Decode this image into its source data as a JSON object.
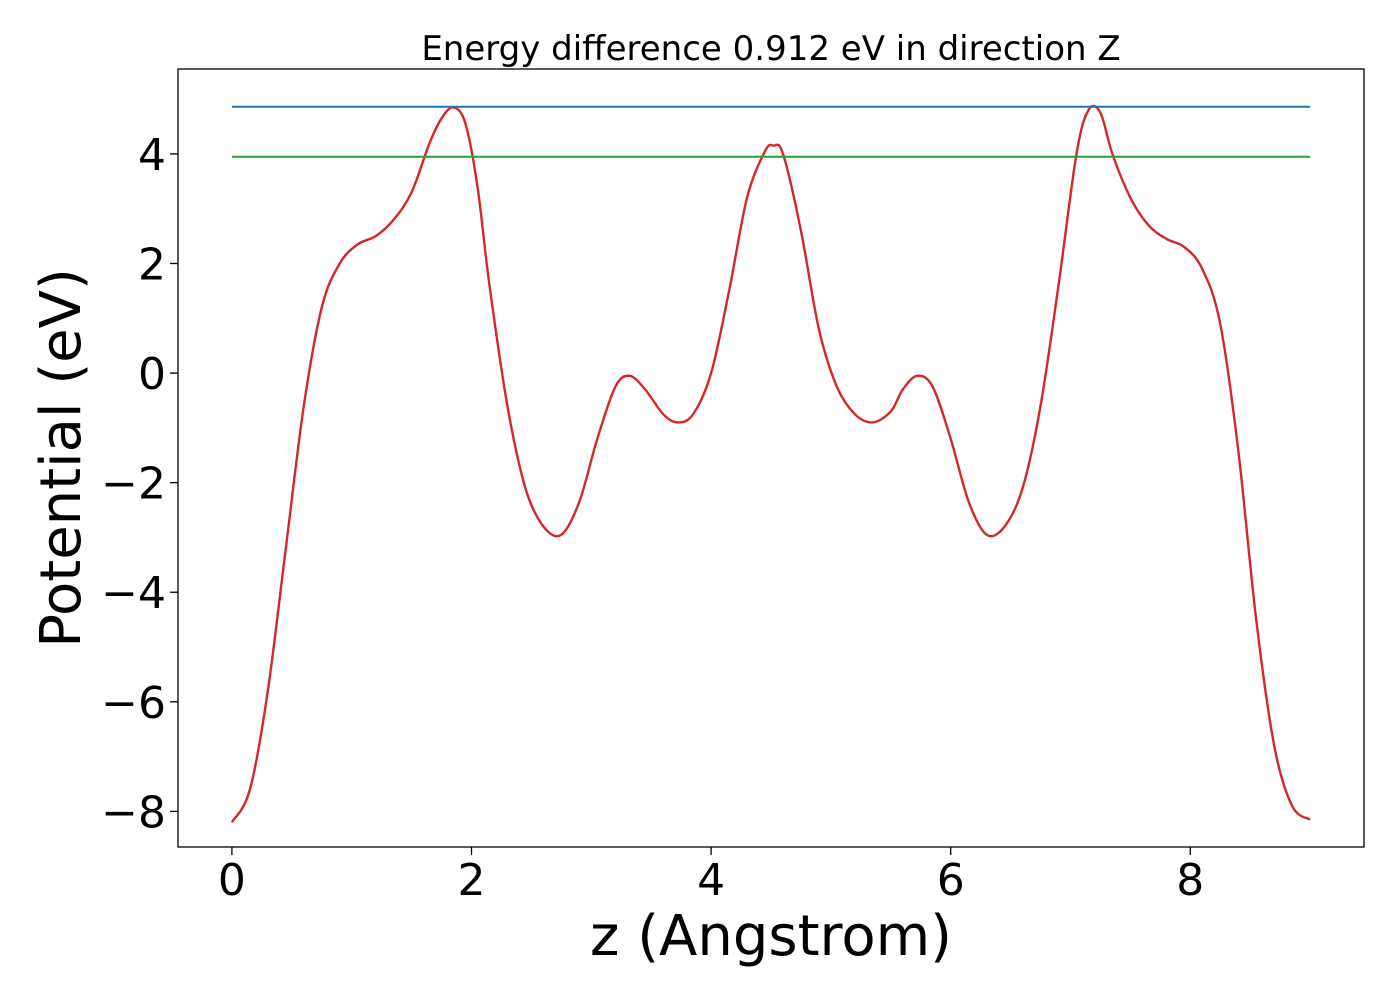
{
  "chart_data": {
    "type": "line",
    "title": "Energy difference 0.912 eV in direction Z",
    "xlabel": "z (Angstrom)",
    "ylabel": "Potential (eV)",
    "xlim": [
      -0.45,
      9.45
    ],
    "ylim": [
      -8.65,
      5.55
    ],
    "x_ticks": [
      0,
      2,
      4,
      6,
      8
    ],
    "x_tick_labels": [
      "0",
      "2",
      "4",
      "6",
      "8"
    ],
    "y_ticks": [
      -8,
      -6,
      -4,
      -2,
      0,
      2,
      4
    ],
    "y_tick_labels": [
      "−8",
      "−6",
      "−4",
      "−2",
      "0",
      "2",
      "4"
    ],
    "grid": false,
    "legend": "none",
    "series": [
      {
        "color": "#d62728",
        "x": [
          0.0,
          0.15,
          0.3,
          0.45,
          0.6,
          0.75,
          0.9,
          1.05,
          1.2,
          1.35,
          1.5,
          1.65,
          1.75,
          1.85,
          1.95,
          2.05,
          2.15,
          2.3,
          2.45,
          2.6,
          2.75,
          2.9,
          3.05,
          3.2,
          3.32,
          3.45,
          3.6,
          3.72,
          3.85,
          4.0,
          4.15,
          4.3,
          4.45,
          4.52,
          4.6,
          4.75,
          4.9,
          5.05,
          5.2,
          5.35,
          5.5,
          5.6,
          5.72,
          5.85,
          6.0,
          6.15,
          6.3,
          6.45,
          6.6,
          6.75,
          6.9,
          7.05,
          7.15,
          7.25,
          7.35,
          7.5,
          7.65,
          7.8,
          7.95,
          8.1,
          8.25,
          8.4,
          8.55,
          8.7,
          8.85,
          9.0
        ],
        "y": [
          -8.2,
          -7.6,
          -5.8,
          -3.2,
          -0.6,
          1.2,
          2.0,
          2.35,
          2.5,
          2.8,
          3.3,
          4.2,
          4.65,
          4.85,
          4.55,
          3.4,
          1.6,
          -0.6,
          -2.1,
          -2.8,
          -2.95,
          -2.35,
          -1.2,
          -0.25,
          -0.05,
          -0.3,
          -0.75,
          -0.9,
          -0.75,
          0.0,
          1.5,
          3.2,
          4.05,
          4.15,
          4.0,
          2.6,
          0.8,
          -0.25,
          -0.75,
          -0.9,
          -0.7,
          -0.3,
          -0.05,
          -0.25,
          -1.2,
          -2.35,
          -2.95,
          -2.8,
          -2.1,
          -0.6,
          1.6,
          4.0,
          4.8,
          4.75,
          4.0,
          3.2,
          2.7,
          2.45,
          2.3,
          1.9,
          0.9,
          -1.4,
          -4.5,
          -6.8,
          -7.9,
          -8.15
        ]
      },
      {
        "color": "#1f77b4",
        "x": [
          0.0,
          9.0
        ],
        "y": [
          4.86,
          4.86
        ]
      },
      {
        "color": "#2ca02c",
        "x": [
          0.0,
          9.0
        ],
        "y": [
          3.95,
          3.95
        ]
      }
    ]
  }
}
